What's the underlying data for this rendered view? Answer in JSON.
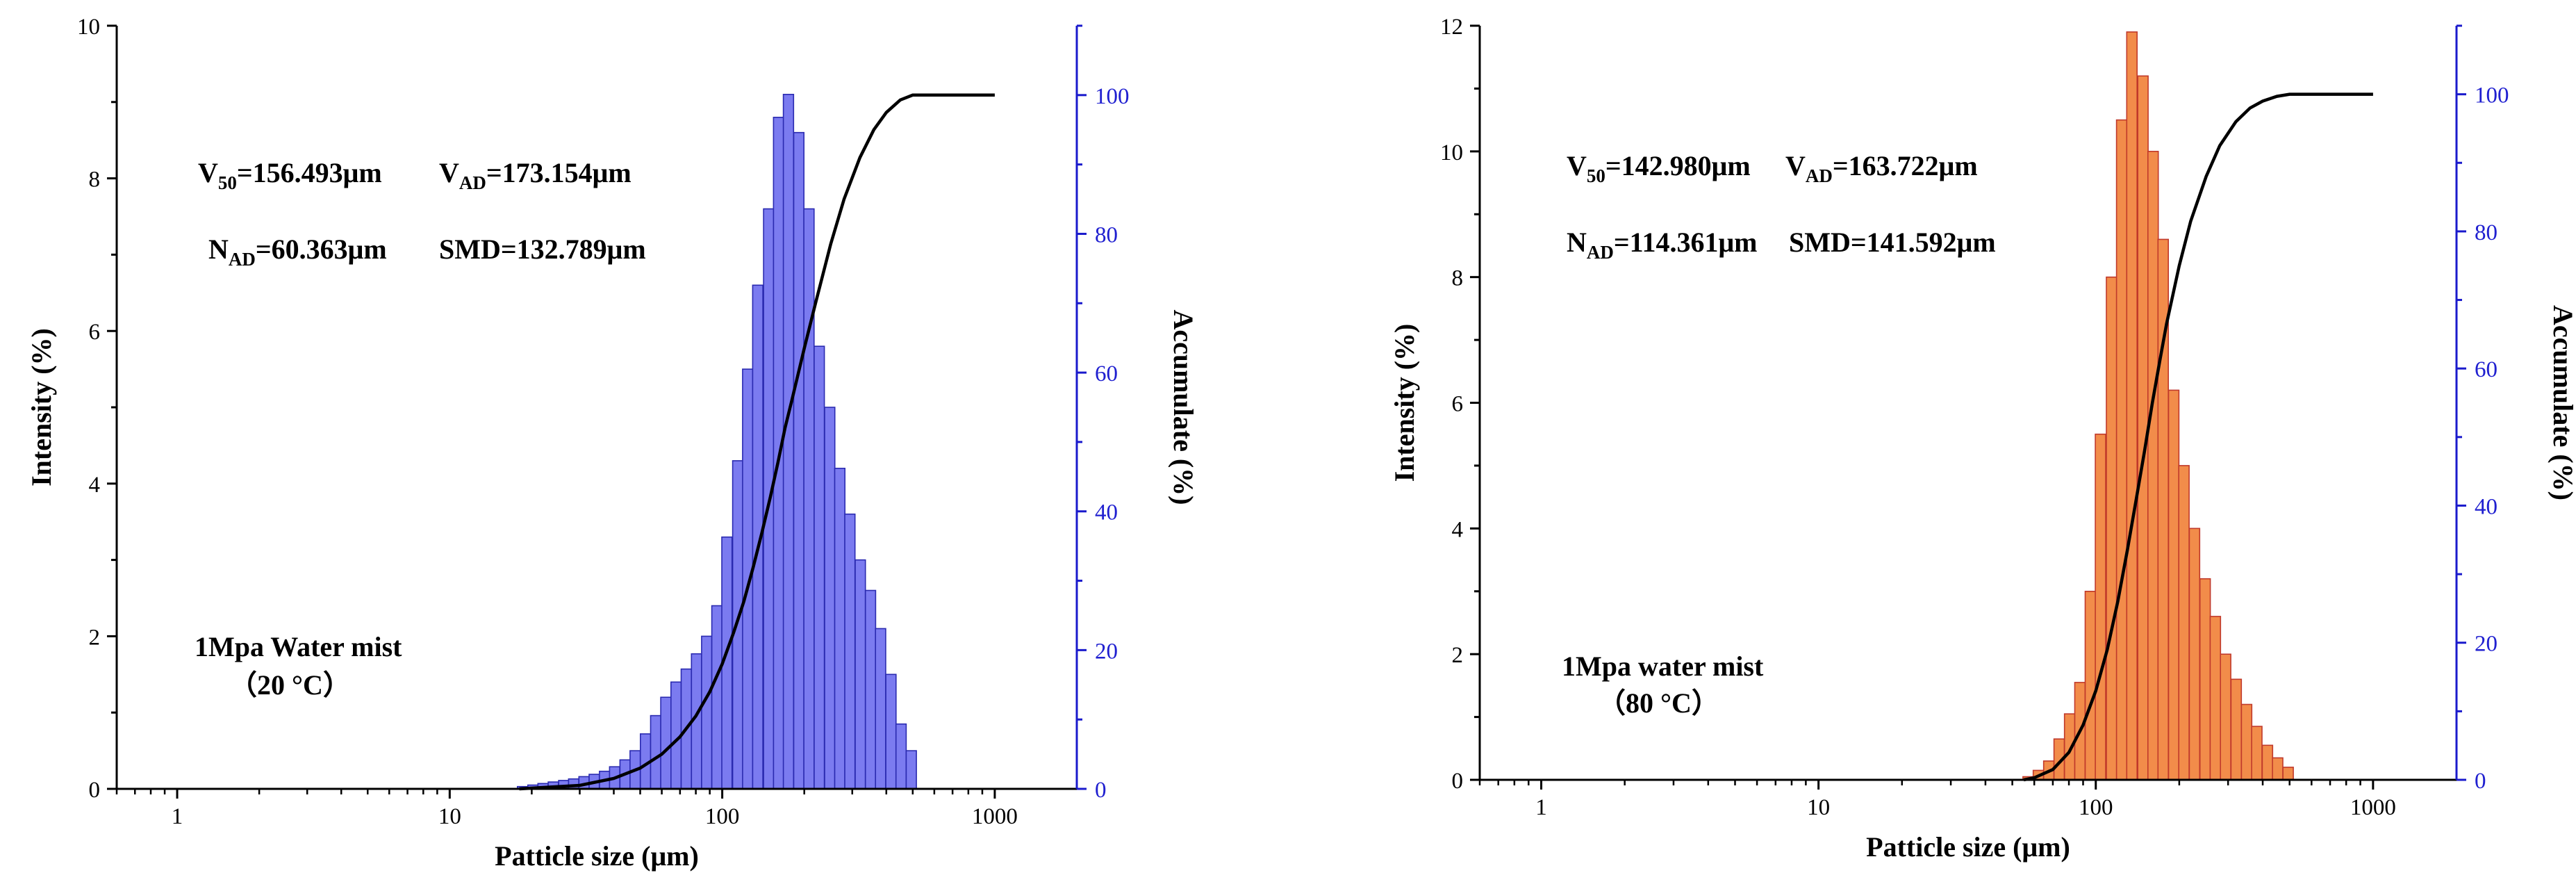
{
  "chart_data": [
    {
      "type": "bar",
      "title": "",
      "xlabel": "Patticle size (μm)",
      "ylabel": "Intensity (%)",
      "y2label": "Accumulate (%)",
      "xscale": "log",
      "xlim": [
        0.6,
        2000
      ],
      "ylim": [
        0,
        10
      ],
      "y2lim": [
        0,
        110
      ],
      "x_ticks": [
        "1",
        "10",
        "100",
        "1000"
      ],
      "y_ticks": [
        "0",
        "2",
        "4",
        "6",
        "8",
        "10"
      ],
      "y2_ticks": [
        "0",
        "20",
        "40",
        "60",
        "80",
        "100"
      ],
      "bar_color": "#7b7bf0",
      "bar_edge_color": "#2a2ab0",
      "right_axis_color": "#1a1acc",
      "curve_color": "#000000",
      "annotations": {
        "v50": {
          "main": "V",
          "sub": "50",
          "rest": "=156.493μm"
        },
        "vad": {
          "main": "V",
          "sub": "AD",
          "rest": "=173.154μm"
        },
        "nad": {
          "main": "N",
          "sub": "AD",
          "rest": "=60.363μm"
        },
        "smd": {
          "text": "SMD=132.789μm"
        }
      },
      "label_line1": "1Mpa  Water mist",
      "label_line2": "（20 °C）",
      "bars_x": [
        18.5,
        20.2,
        22,
        24,
        26.2,
        28.5,
        31.1,
        33.9,
        37,
        40.3,
        44,
        47.9,
        52.3,
        57,
        62.1,
        67.7,
        73.8,
        80.5,
        87.7,
        95.6,
        104,
        114,
        124,
        135,
        148,
        161,
        175,
        191,
        208,
        227,
        248,
        270,
        294,
        321,
        350,
        381,
        416,
        453,
        494
      ],
      "bars_y": [
        0.03,
        0.05,
        0.07,
        0.09,
        0.11,
        0.13,
        0.16,
        0.19,
        0.23,
        0.29,
        0.38,
        0.5,
        0.72,
        0.96,
        1.2,
        1.4,
        1.57,
        1.77,
        2.0,
        2.4,
        3.3,
        4.3,
        5.5,
        6.6,
        7.6,
        8.8,
        9.1,
        8.6,
        7.6,
        5.8,
        5.0,
        4.2,
        3.6,
        3.0,
        2.6,
        2.1,
        1.5,
        0.85,
        0.5
      ],
      "curve_x": [
        18,
        30,
        40,
        50,
        60,
        70,
        80,
        90,
        100,
        110,
        120,
        130,
        140,
        150,
        160,
        170,
        180,
        200,
        220,
        250,
        280,
        320,
        360,
        400,
        450,
        500,
        520,
        1000
      ],
      "curve_y": [
        0,
        0.5,
        1.5,
        3,
        5,
        7.5,
        10.5,
        14,
        18,
        22.5,
        27,
        32,
        37,
        42,
        47,
        52,
        56,
        63.5,
        70,
        78.5,
        85,
        91,
        95,
        97.5,
        99.3,
        100,
        100,
        100
      ]
    },
    {
      "type": "bar",
      "title": "",
      "xlabel": "Patticle size (μm)",
      "ylabel": "Intensity (%)",
      "y2label": "Accumulate (%)",
      "xscale": "log",
      "xlim": [
        0.6,
        2000
      ],
      "ylim": [
        0,
        12
      ],
      "y2lim": [
        0,
        110
      ],
      "x_ticks": [
        "1",
        "10",
        "100",
        "1000"
      ],
      "y_ticks": [
        "0",
        "2",
        "4",
        "6",
        "8",
        "10",
        "12"
      ],
      "y2_ticks": [
        "0",
        "20",
        "40",
        "60",
        "80",
        "100"
      ],
      "bar_color": "#f28c4a",
      "bar_edge_color": "#c0392b",
      "right_axis_color": "#1a1acc",
      "curve_color": "#000000",
      "annotations": {
        "v50": {
          "main": "V",
          "sub": "50",
          "rest": "=142.980μm"
        },
        "vad": {
          "main": "V",
          "sub": "AD",
          "rest": "=163.722μm"
        },
        "nad": {
          "main": "N",
          "sub": "AD",
          "rest": "=114.361μm"
        },
        "smd": {
          "text": "SMD=141.592μm"
        }
      },
      "label_line1": "1Mpa water mist",
      "label_line2": "（80 °C）",
      "bars_x": [
        57,
        62.1,
        67.7,
        73.8,
        80.5,
        87.7,
        95.6,
        104,
        114,
        124,
        135,
        148,
        161,
        175,
        191,
        208,
        227,
        248,
        270,
        294,
        321,
        350,
        381,
        416,
        453,
        494
      ],
      "bars_y": [
        0.05,
        0.15,
        0.3,
        0.65,
        1.05,
        1.55,
        3.0,
        5.5,
        8.0,
        10.5,
        11.9,
        11.2,
        10.0,
        8.6,
        6.2,
        5.0,
        4.0,
        3.2,
        2.6,
        2.0,
        1.6,
        1.2,
        0.85,
        0.55,
        0.35,
        0.2
      ],
      "curve_x": [
        55,
        60,
        70,
        80,
        90,
        100,
        110,
        120,
        130,
        140,
        150,
        160,
        170,
        180,
        200,
        220,
        250,
        280,
        320,
        360,
        400,
        450,
        500,
        520,
        1000
      ],
      "curve_y": [
        0,
        0.3,
        1.5,
        4,
        8,
        13,
        19,
        26,
        33.5,
        41,
        48,
        55,
        61,
        66.5,
        75,
        81.5,
        88,
        92.5,
        96,
        98,
        99,
        99.7,
        100,
        100,
        100
      ]
    }
  ]
}
